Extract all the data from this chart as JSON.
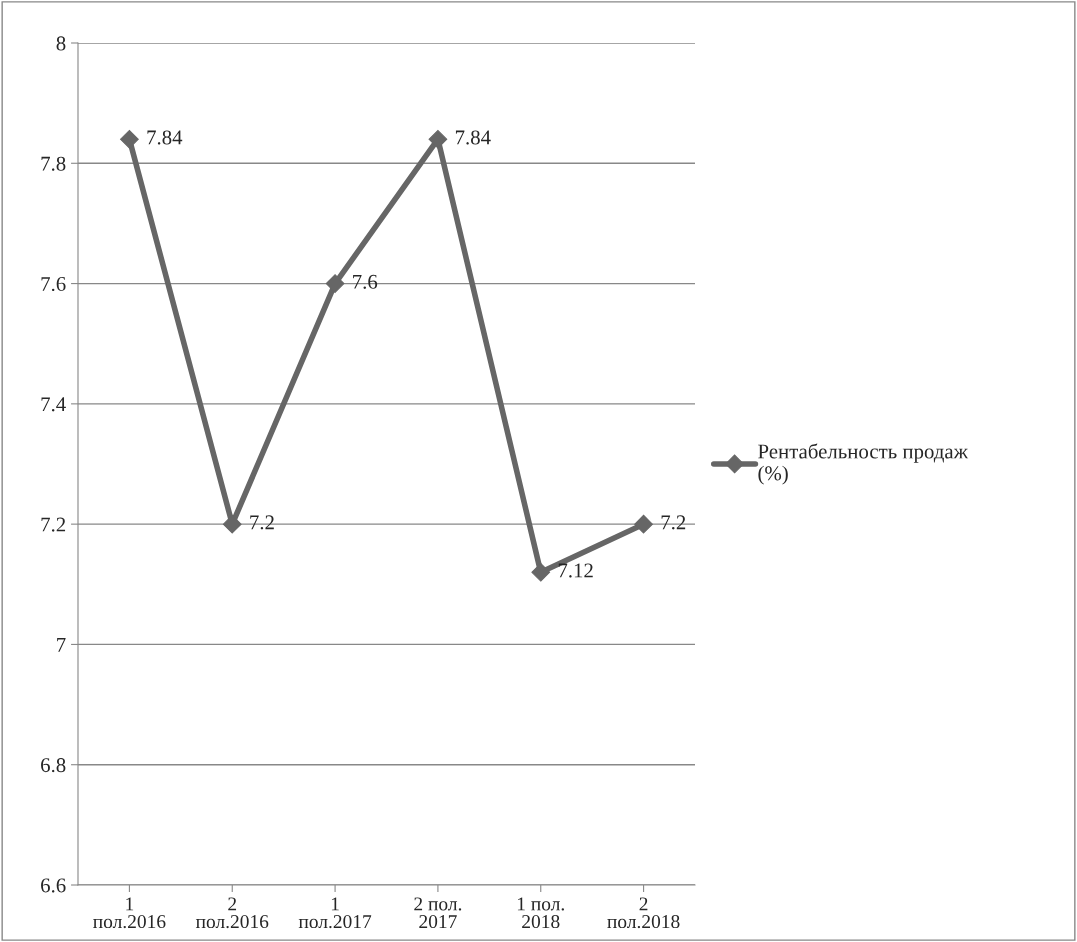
{
  "chart_data": {
    "type": "line",
    "categories": [
      "1\nпол.2016",
      "2\nпол.2016",
      "1\nпол.2017",
      "2 пол.\n2017",
      "1 пол.\n2018",
      "2\nпол.2018"
    ],
    "series": [
      {
        "name": "Рентабельность продаж\n(%)",
        "color": "#666666",
        "values": [
          7.84,
          7.2,
          7.6,
          7.84,
          7.12,
          7.2
        ]
      }
    ],
    "ylim": [
      6.6,
      8
    ],
    "yticks": [
      6.6,
      6.8,
      7,
      7.2,
      7.4,
      7.6,
      7.8,
      8
    ],
    "grid": "y",
    "legend": "right",
    "marker": "diamond",
    "line_style": "solid",
    "data_labels": true
  }
}
